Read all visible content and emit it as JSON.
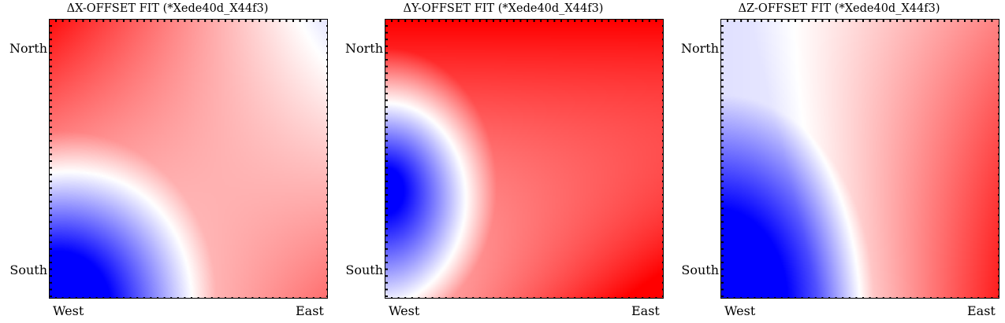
{
  "chart_data": [
    {
      "type": "heatmap",
      "title": "ΔX-OFFSET FIT (*Xede40d_X44f3)",
      "x_ticks": [
        "West",
        "East"
      ],
      "y_ticks": [
        "North",
        "South"
      ],
      "colormap": [
        "#0000ff",
        "#ffffff",
        "#ff0000"
      ],
      "field": "dx"
    },
    {
      "type": "heatmap",
      "title": "ΔY-OFFSET FIT (*Xede40d_X44f3)",
      "x_ticks": [
        "West",
        "East"
      ],
      "y_ticks": [
        "North",
        "South"
      ],
      "colormap": [
        "#0000ff",
        "#ffffff",
        "#ff0000"
      ],
      "field": "dy"
    },
    {
      "type": "heatmap",
      "title": "ΔZ-OFFSET FIT (*Xede40d_X44f3)",
      "x_ticks": [
        "West",
        "East"
      ],
      "y_ticks": [
        "North",
        "South"
      ],
      "colormap": [
        "#0000ff",
        "#ffffff",
        "#ff0000"
      ],
      "field": "dz"
    }
  ]
}
